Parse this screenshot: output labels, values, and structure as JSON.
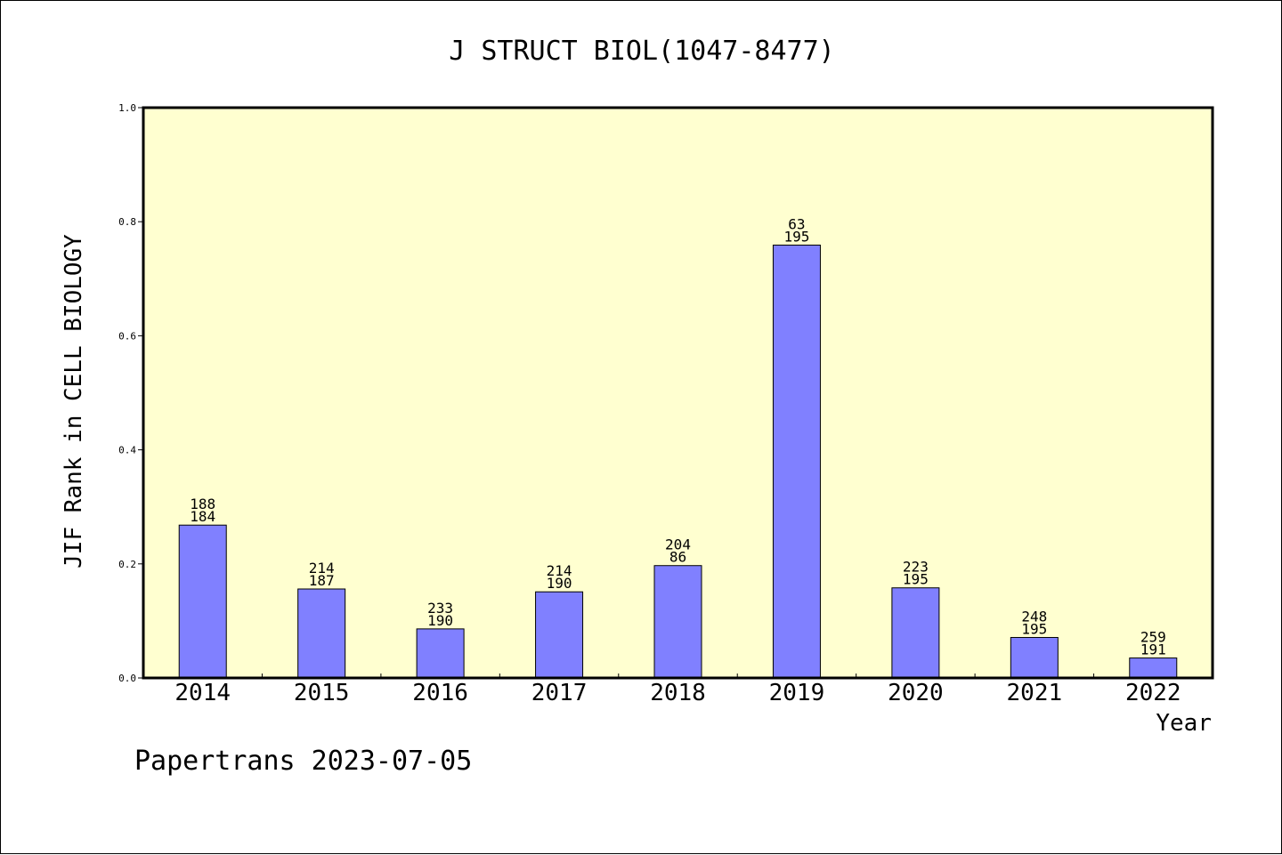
{
  "chart_data": {
    "type": "bar",
    "title": "J STRUCT BIOL(1047-8477)",
    "xlabel": "Year",
    "ylabel": "JIF Rank in CELL BIOLOGY",
    "footer": "Papertrans 2023-07-05",
    "categories": [
      "2014",
      "2015",
      "2016",
      "2017",
      "2018",
      "2019",
      "2020",
      "2021",
      "2022"
    ],
    "values": [
      0.268,
      0.156,
      0.086,
      0.151,
      0.197,
      0.759,
      0.158,
      0.071,
      0.035
    ],
    "label_top": [
      "188",
      "214",
      "233",
      "214",
      "204",
      "63",
      "223",
      "248",
      "259"
    ],
    "label_bottom": [
      "184",
      "187",
      "190",
      "190",
      "86",
      "195",
      "195",
      "195",
      "191"
    ],
    "ylim": [
      0,
      1
    ],
    "yticks": [
      "0.0",
      "0.2",
      "0.4",
      "0.6",
      "0.8",
      "1.0"
    ],
    "colors": {
      "plot_background": "#ffffd0",
      "bar_fill": "#8080ff",
      "bar_stroke": "#000000"
    },
    "grid": false,
    "legend": "none"
  }
}
